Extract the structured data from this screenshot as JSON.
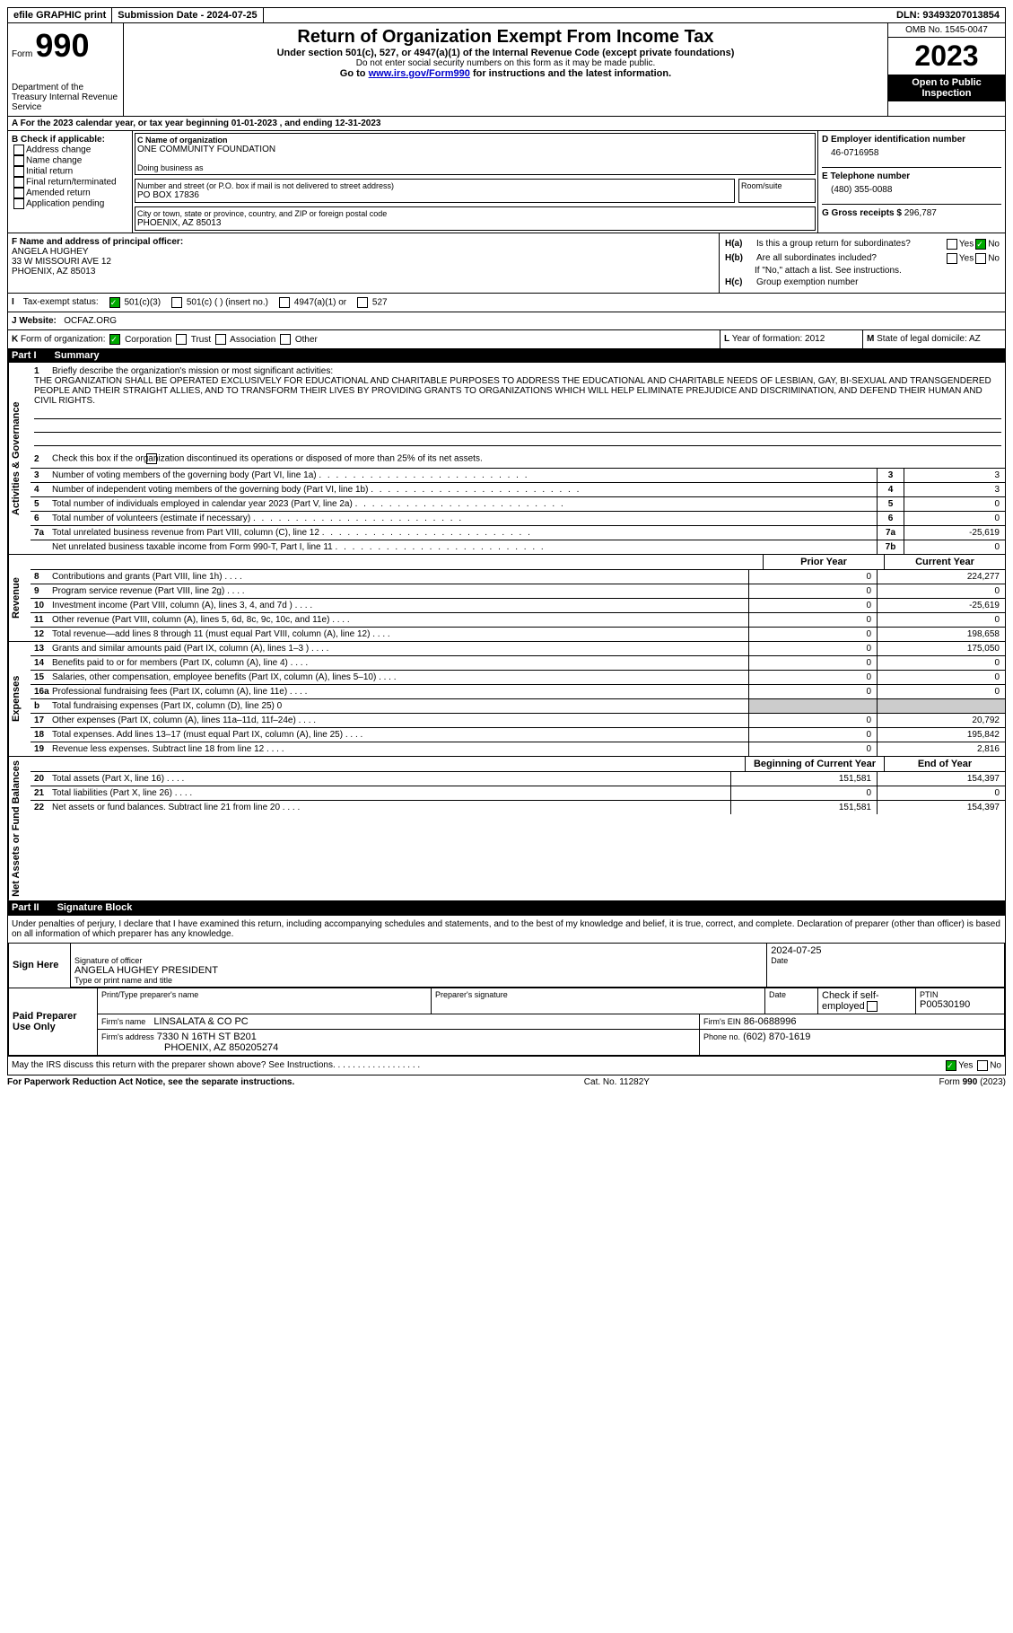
{
  "top": {
    "print": "efile GRAPHIC print",
    "subLabel": "Submission Date - 2024-07-25",
    "dln": "DLN: 93493207013854"
  },
  "hdr": {
    "formLabel": "Form",
    "formNum": "990",
    "dept": "Department of the Treasury Internal Revenue Service",
    "title": "Return of Organization Exempt From Income Tax",
    "sub": "Under section 501(c), 527, or 4947(a)(1) of the Internal Revenue Code (except private foundations)",
    "note": "Do not enter social security numbers on this form as it may be made public.",
    "goto": "Go to ",
    "link": "www.irs.gov/Form990",
    "gotoEnd": " for instructions and the latest information.",
    "omb": "OMB No. 1545-0047",
    "year": "2023",
    "open": "Open to Public Inspection"
  },
  "A": {
    "text": "A For the 2023 calendar year, or tax year beginning 01-01-2023   , and ending 12-31-2023"
  },
  "B": {
    "label": "B Check if applicable:",
    "opts": [
      "Address change",
      "Name change",
      "Initial return",
      "Final return/terminated",
      "Amended return",
      "Application pending"
    ]
  },
  "C": {
    "nameLabel": "C Name of organization",
    "name": "ONE COMMUNITY FOUNDATION",
    "dbaLabel": "Doing business as",
    "dba": "",
    "streetLabel": "Number and street (or P.O. box if mail is not delivered to street address)",
    "street": "PO BOX 17836",
    "roomLabel": "Room/suite",
    "cityLabel": "City or town, state or province, country, and ZIP or foreign postal code",
    "city": "PHOENIX, AZ  85013"
  },
  "D": {
    "label": "D Employer identification number",
    "val": "46-0716958"
  },
  "E": {
    "label": "E Telephone number",
    "val": "(480) 355-0088"
  },
  "G": {
    "label": "G Gross receipts $",
    "val": "296,787"
  },
  "F": {
    "label": "F  Name and address of principal officer:",
    "name": "ANGELA HUGHEY",
    "addr1": "33 W MISSOURI AVE 12",
    "addr2": "PHOENIX, AZ  85013"
  },
  "H": {
    "a": "H(a)",
    "aText": "Is this a group return for subordinates?",
    "b": "H(b)",
    "bText": "Are all subordinates included?",
    "bNote": "If \"No,\" attach a list. See instructions.",
    "c": "H(c)",
    "cText": "Group exemption number"
  },
  "I": {
    "label": "I",
    "text": "Tax-exempt status:",
    "opts": [
      "501(c)(3)",
      "501(c) (  ) (insert no.)",
      "4947(a)(1) or",
      "527"
    ]
  },
  "J": {
    "label": "J",
    "text": "Website:",
    "val": "OCFAZ.ORG"
  },
  "K": {
    "label": "K",
    "text": "Form of organization:",
    "opts": [
      "Corporation",
      "Trust",
      "Association",
      "Other"
    ]
  },
  "L": {
    "label": "L",
    "text": "Year of formation: 2012"
  },
  "M": {
    "label": "M",
    "text": "State of legal domicile: AZ"
  },
  "part1": {
    "num": "Part I",
    "title": "Summary"
  },
  "p1": {
    "l1": "Briefly describe the organization's mission or most significant activities:",
    "mission": "THE ORGANIZATION SHALL BE OPERATED EXCLUSIVELY FOR EDUCATIONAL AND CHARITABLE PURPOSES TO ADDRESS THE EDUCATIONAL AND CHARITABLE NEEDS OF LESBIAN, GAY, BI-SEXUAL AND TRANSGENDERED PEOPLE AND THEIR STRAIGHT ALLIES, AND TO TRANSFORM THEIR LIVES BY PROVIDING GRANTS TO ORGANIZATIONS WHICH WILL HELP ELIMINATE PREJUDICE AND DISCRIMINATION, AND DEFEND THEIR HUMAN AND CIVIL RIGHTS.",
    "l2": "Check this box         if the organization discontinued its operations or disposed of more than 25% of its net assets.",
    "rows": [
      {
        "n": "3",
        "t": "Number of voting members of the governing body (Part VI, line 1a)",
        "box": "3",
        "v": "3"
      },
      {
        "n": "4",
        "t": "Number of independent voting members of the governing body (Part VI, line 1b)",
        "box": "4",
        "v": "3"
      },
      {
        "n": "5",
        "t": "Total number of individuals employed in calendar year 2023 (Part V, line 2a)",
        "box": "5",
        "v": "0"
      },
      {
        "n": "6",
        "t": "Total number of volunteers (estimate if necessary)",
        "box": "6",
        "v": "0"
      },
      {
        "n": "7a",
        "t": "Total unrelated business revenue from Part VIII, column (C), line 12",
        "box": "7a",
        "v": "-25,619"
      },
      {
        "n": "",
        "t": "Net unrelated business taxable income from Form 990-T, Part I, line 11",
        "box": "7b",
        "v": "0"
      }
    ],
    "hdrPrior": "Prior Year",
    "hdrCurr": "Current Year",
    "hdrBegin": "Beginning of Current Year",
    "hdrEnd": "End of Year"
  },
  "labels": {
    "gov": "Activities & Governance",
    "rev": "Revenue",
    "exp": "Expenses",
    "net": "Net Assets or Fund Balances"
  },
  "rev": [
    {
      "n": "8",
      "t": "Contributions and grants (Part VIII, line 1h)",
      "p": "0",
      "c": "224,277"
    },
    {
      "n": "9",
      "t": "Program service revenue (Part VIII, line 2g)",
      "p": "0",
      "c": "0"
    },
    {
      "n": "10",
      "t": "Investment income (Part VIII, column (A), lines 3, 4, and 7d )",
      "p": "0",
      "c": "-25,619"
    },
    {
      "n": "11",
      "t": "Other revenue (Part VIII, column (A), lines 5, 6d, 8c, 9c, 10c, and 11e)",
      "p": "0",
      "c": "0"
    },
    {
      "n": "12",
      "t": "Total revenue—add lines 8 through 11 (must equal Part VIII, column (A), line 12)",
      "p": "0",
      "c": "198,658"
    }
  ],
  "exp": [
    {
      "n": "13",
      "t": "Grants and similar amounts paid (Part IX, column (A), lines 1–3 )",
      "p": "0",
      "c": "175,050"
    },
    {
      "n": "14",
      "t": "Benefits paid to or for members (Part IX, column (A), line 4)",
      "p": "0",
      "c": "0"
    },
    {
      "n": "15",
      "t": "Salaries, other compensation, employee benefits (Part IX, column (A), lines 5–10)",
      "p": "0",
      "c": "0"
    },
    {
      "n": "16a",
      "t": "Professional fundraising fees (Part IX, column (A), line 11e)",
      "p": "0",
      "c": "0"
    },
    {
      "n": "b",
      "t": "Total fundraising expenses (Part IX, column (D), line 25) 0",
      "p": "",
      "c": "",
      "shaded": true
    },
    {
      "n": "17",
      "t": "Other expenses (Part IX, column (A), lines 11a–11d, 11f–24e)",
      "p": "0",
      "c": "20,792"
    },
    {
      "n": "18",
      "t": "Total expenses. Add lines 13–17 (must equal Part IX, column (A), line 25)",
      "p": "0",
      "c": "195,842"
    },
    {
      "n": "19",
      "t": "Revenue less expenses. Subtract line 18 from line 12",
      "p": "0",
      "c": "2,816"
    }
  ],
  "net": [
    {
      "n": "20",
      "t": "Total assets (Part X, line 16)",
      "p": "151,581",
      "c": "154,397"
    },
    {
      "n": "21",
      "t": "Total liabilities (Part X, line 26)",
      "p": "0",
      "c": "0"
    },
    {
      "n": "22",
      "t": "Net assets or fund balances. Subtract line 21 from line 20",
      "p": "151,581",
      "c": "154,397"
    }
  ],
  "part2": {
    "num": "Part II",
    "title": "Signature Block"
  },
  "sig": {
    "decl": "Under penalties of perjury, I declare that I have examined this return, including accompanying schedules and statements, and to the best of my knowledge and belief, it is true, correct, and complete. Declaration of preparer (other than officer) is based on all information of which preparer has any knowledge.",
    "signHere": "Sign Here",
    "paidPrep": "Paid Preparer Use Only",
    "sigOfficer": "Signature of officer",
    "date": "2024-07-25",
    "nameTitle": "ANGELA HUGHEY PRESIDENT",
    "typeLabel": "Type or print name and title",
    "prepName": "Print/Type preparer's name",
    "prepSig": "Preparer's signature",
    "dateLabel": "Date",
    "checkSelf": "Check         if self-employed",
    "ptin": "PTIN",
    "ptinVal": "P00530190",
    "firmName": "Firm's name",
    "firmNameVal": "LINSALATA & CO PC",
    "firmEin": "Firm's EIN",
    "firmEinVal": "86-0688996",
    "firmAddr": "Firm's address",
    "firmAddrVal": "7330 N 16TH ST B201",
    "firmCity": "PHOENIX, AZ  850205274",
    "phone": "Phone no.",
    "phoneVal": "(602) 870-1619",
    "discuss": "May the IRS discuss this return with the preparer shown above? See Instructions."
  },
  "ftr": {
    "pra": "For Paperwork Reduction Act Notice, see the separate instructions.",
    "cat": "Cat. No. 11282Y",
    "form": "Form 990 (2023)"
  }
}
